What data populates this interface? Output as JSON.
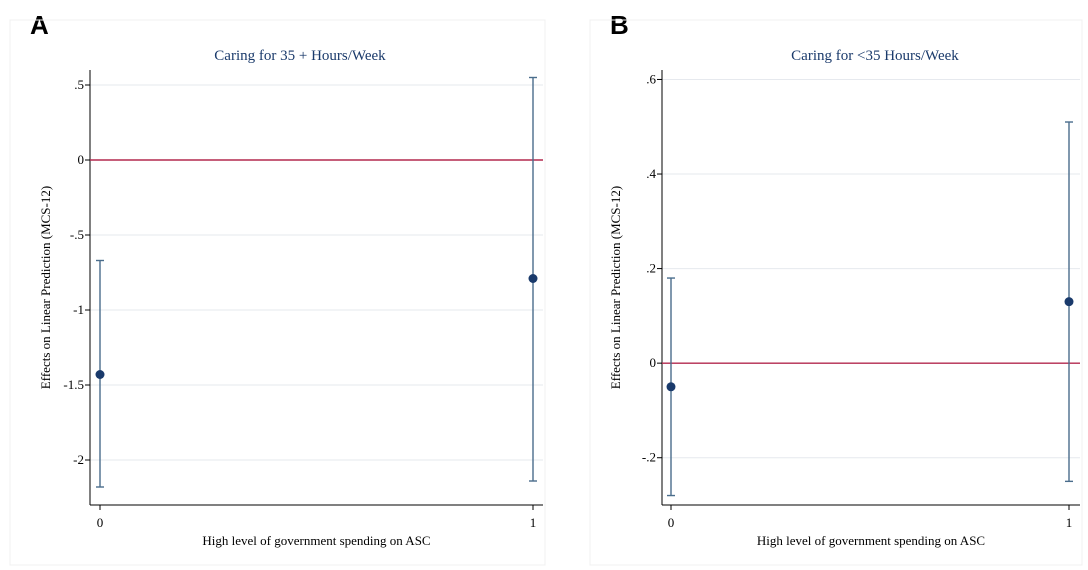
{
  "panels": [
    {
      "letter": "A",
      "chart": {
        "type": "scatter",
        "title": "Caring for 35 + Hours/Week",
        "xlabel": "High level of government spending on ASC",
        "ylabel": "Effects on Linear Prediction (MCS-12)",
        "x_ticks": [
          "0",
          "1"
        ],
        "y_ticks": [
          {
            "value": 0.5,
            "label": ".5"
          },
          {
            "value": 0,
            "label": "0"
          },
          {
            "value": -0.5,
            "label": "-.5"
          },
          {
            "value": -1,
            "label": "-1"
          },
          {
            "value": -1.5,
            "label": "-1.5"
          },
          {
            "value": -2,
            "label": "-2"
          }
        ],
        "points": [
          {
            "x": 0,
            "y": -1.43,
            "ci_low": -2.18,
            "ci_high": -0.67
          },
          {
            "x": 1,
            "y": -0.79,
            "ci_low": -2.14,
            "ci_high": 0.55
          }
        ],
        "reference_line": 0,
        "grid": true,
        "colors": {
          "point": "#1a3a6b",
          "ci": "#4a6d8c",
          "ref": "#b3294e",
          "title": "#1a3a6b"
        }
      }
    },
    {
      "letter": "B",
      "chart": {
        "type": "scatter",
        "title": "Caring for <35 Hours/Week",
        "xlabel": "High level of government spending on ASC",
        "ylabel": "Effects on Linear Prediction (MCS-12)",
        "x_ticks": [
          "0",
          "1"
        ],
        "y_ticks": [
          {
            "value": 0.6,
            "label": ".6"
          },
          {
            "value": 0.4,
            "label": ".4"
          },
          {
            "value": 0.2,
            "label": ".2"
          },
          {
            "value": 0,
            "label": "0"
          },
          {
            "value": -0.2,
            "label": "-.2"
          }
        ],
        "points": [
          {
            "x": 0,
            "y": -0.05,
            "ci_low": -0.28,
            "ci_high": 0.18
          },
          {
            "x": 1,
            "y": 0.13,
            "ci_low": -0.25,
            "ci_high": 0.51
          }
        ],
        "reference_line": 0,
        "grid": true,
        "colors": {
          "point": "#1a3a6b",
          "ci": "#4a6d8c",
          "ref": "#b3294e",
          "title": "#1a3a6b"
        }
      }
    }
  ]
}
